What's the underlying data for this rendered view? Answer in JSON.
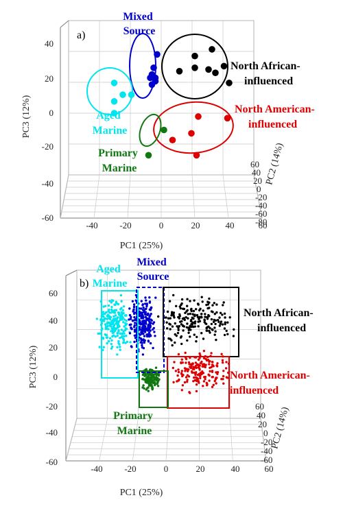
{
  "chart_data": [
    {
      "panel": "a)",
      "type": "scatter",
      "xlabel": "PC1 (25%)",
      "ylabel": "PC3 (12%)",
      "zlabel": "PC2 (14%)",
      "x_ticks": [
        "-40",
        "-20",
        "0",
        "20",
        "40",
        "60"
      ],
      "y_ticks": [
        "-60",
        "-40",
        "-20",
        "0",
        "20",
        "40"
      ],
      "z_ticks": [
        "60",
        "40",
        "20",
        "0",
        "-20",
        "-40",
        "-60",
        "-80"
      ],
      "xlim": [
        -45,
        60
      ],
      "ylim": [
        -60,
        45
      ],
      "grid": true,
      "series": [
        {
          "name": "Mixed Source",
          "color": "#0000cc",
          "points": [
            [
              -2,
              35
            ],
            [
              -4,
              27
            ],
            [
              -5,
              23
            ],
            [
              -6,
              21
            ],
            [
              -3,
              21
            ],
            [
              -3,
              19
            ],
            [
              -5,
              17
            ]
          ]
        },
        {
          "name": "North African-influenced",
          "color": "#000000",
          "points": [
            [
              30,
              38
            ],
            [
              20,
              34
            ],
            [
              37,
              28
            ],
            [
              20,
              27
            ],
            [
              28,
              26
            ],
            [
              32,
              24
            ],
            [
              11,
              25
            ],
            [
              40,
              18
            ]
          ]
        },
        {
          "name": "Aged Marine",
          "color": "#00e5ee",
          "points": [
            [
              -27,
              18
            ],
            [
              -22,
              11
            ],
            [
              -17,
              11
            ],
            [
              -27,
              7
            ],
            [
              -27,
              0
            ]
          ]
        },
        {
          "name": "North American-influenced",
          "color": "#dd0000",
          "points": [
            [
              39,
              -3
            ],
            [
              22,
              -2
            ],
            [
              18,
              -12
            ],
            [
              7,
              -16
            ],
            [
              21,
              -25
            ]
          ]
        },
        {
          "name": "Primary Marine",
          "color": "#117711",
          "points": [
            [
              2,
              -10
            ],
            [
              -7,
              -25
            ]
          ]
        }
      ]
    },
    {
      "panel": "b)",
      "type": "scatter",
      "xlabel": "PC1 (25%)",
      "ylabel": "PC3 (12%)",
      "zlabel": "PC2 (14%)",
      "x_ticks": [
        "-40",
        "-20",
        "0",
        "20",
        "40",
        "60"
      ],
      "y_ticks": [
        "-60",
        "-40",
        "-20",
        "0",
        "20",
        "40",
        "60"
      ],
      "z_ticks": [
        "60",
        "40",
        "20",
        "0",
        "-20",
        "-40",
        "-60"
      ],
      "xlim": [
        -45,
        60
      ],
      "ylim": [
        -60,
        60
      ],
      "grid": true,
      "series": [
        {
          "name": "Aged Marine",
          "color": "#00e5ee",
          "cluster": {
            "x_range": [
              -40,
              -20
            ],
            "y_range": [
              15,
              62
            ],
            "n": 220
          }
        },
        {
          "name": "Mixed Source",
          "color": "#0000cc",
          "cluster": {
            "x_range": [
              -22,
              -5
            ],
            "y_range": [
              15,
              64
            ],
            "n": 260
          }
        },
        {
          "name": "North African-influenced",
          "color": "#000000",
          "cluster": {
            "x_range": [
              -5,
              40
            ],
            "y_range": [
              20,
              64
            ],
            "n": 200
          }
        },
        {
          "name": "North American-influenced",
          "color": "#dd0000",
          "cluster": {
            "x_range": [
              0,
              38
            ],
            "y_range": [
              -15,
              25
            ],
            "n": 180
          }
        },
        {
          "name": "Primary Marine",
          "color": "#117711",
          "cluster": {
            "x_range": [
              -14,
              -3
            ],
            "y_range": [
              -12,
              10
            ],
            "n": 140
          }
        }
      ]
    }
  ],
  "labels": {
    "a": {
      "panel": "a)",
      "mixed": [
        "Mixed",
        "Source"
      ],
      "north_african": [
        "North African-",
        "influenced"
      ],
      "aged": [
        "Aged",
        "Marine"
      ],
      "north_american": [
        "North American-",
        "influenced"
      ],
      "primary": [
        "Primary",
        "Marine"
      ],
      "xlabel": "PC1 (25%)",
      "ylabel": "PC3 (12%)",
      "zlabel": "PC2 (14%)"
    },
    "b": {
      "panel": "b)",
      "aged": [
        "Aged",
        "Marine"
      ],
      "mixed": [
        "Mixed",
        "Source"
      ],
      "north_african": [
        "North African-",
        "influenced"
      ],
      "north_american": [
        "North American-",
        "influenced"
      ],
      "primary": [
        "Primary",
        "Marine"
      ],
      "xlabel": "PC1 (25%)",
      "ylabel": "PC3 (12%)",
      "zlabel": "PC2 (14%)"
    }
  },
  "colors": {
    "aged": "#00e5ee",
    "mixed": "#0000cc",
    "north_african": "#000000",
    "north_american": "#dd0000",
    "primary": "#117711"
  }
}
